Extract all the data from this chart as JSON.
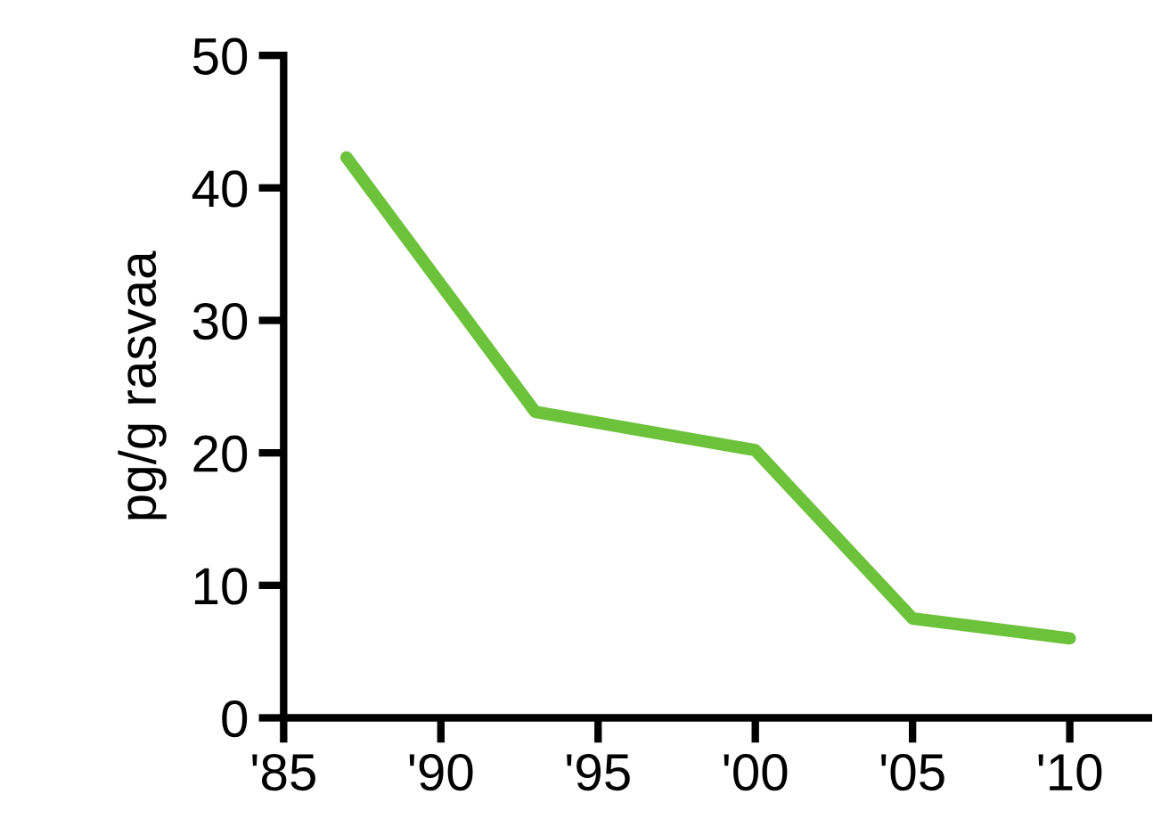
{
  "chart_data": {
    "type": "line",
    "ylabel": "pg/g rasvaa",
    "x": [
      1987,
      1993,
      2000,
      2005,
      2010
    ],
    "series": [
      {
        "color": "#6cc23a",
        "values": [
          42.3,
          23.1,
          20.2,
          7.5,
          6.0
        ]
      }
    ],
    "xlim": [
      1985,
      2012.5
    ],
    "ylim": [
      0,
      50
    ],
    "xticks": [
      {
        "value": 1985,
        "label": "'85"
      },
      {
        "value": 1990,
        "label": "'90"
      },
      {
        "value": 1995,
        "label": "'95"
      },
      {
        "value": 2000,
        "label": "'00"
      },
      {
        "value": 2005,
        "label": "'05"
      },
      {
        "value": 2010,
        "label": "'10"
      }
    ],
    "yticks": [
      0,
      10,
      20,
      30,
      40,
      50
    ],
    "grid": false,
    "marker": "none",
    "line_style": "solid"
  }
}
